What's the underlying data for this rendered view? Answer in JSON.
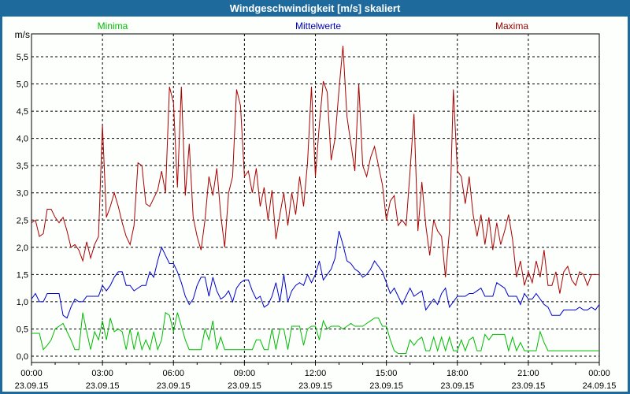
{
  "window": {
    "title": "Windgeschwindigkeit [m/s] skaliert"
  },
  "legend": [
    {
      "label": "Minima",
      "color": "#00bb00"
    },
    {
      "label": "Mittelwerte",
      "color": "#0000bb"
    },
    {
      "label": "Maxima",
      "color": "#990000"
    }
  ],
  "axis": {
    "unit_label": "m/s",
    "y_ticks": [
      "0,0",
      "0,5",
      "1,0",
      "1,5",
      "2,0",
      "2,5",
      "3,0",
      "3,5",
      "4,0",
      "4,5",
      "5,0",
      "5,5"
    ],
    "x_ticks": [
      {
        "time": "00:00",
        "date": "23.09.15"
      },
      {
        "time": "03:00",
        "date": "23.09.15"
      },
      {
        "time": "06:00",
        "date": "23.09.15"
      },
      {
        "time": "09:00",
        "date": "23.09.15"
      },
      {
        "time": "12:00",
        "date": "23.09.15"
      },
      {
        "time": "15:00",
        "date": "23.09.15"
      },
      {
        "time": "18:00",
        "date": "23.09.15"
      },
      {
        "time": "21:00",
        "date": "23.09.15"
      },
      {
        "time": "00:00",
        "date": "24.09.15"
      }
    ]
  },
  "colors": {
    "titlebar": "#1e6a9c",
    "background": "#fcfffc",
    "grid": "#000000"
  },
  "chart_data": {
    "type": "line",
    "title": "Windgeschwindigkeit [m/s] skaliert",
    "ylabel": "m/s",
    "ylim": [
      0,
      5.75
    ],
    "y_gridline_step": 0.5,
    "x_start": "23.09.15 00:00",
    "x_end": "24.09.15 00:00",
    "x_interval_minutes": 10,
    "x_major_gridlines_hours": [
      3,
      6,
      9,
      12,
      15,
      18,
      21
    ],
    "grid": "dashed",
    "legend_position": "top",
    "series": [
      {
        "name": "Maxima",
        "color": "#aa0000",
        "values": [
          2.45,
          2.5,
          2.2,
          2.25,
          2.7,
          2.7,
          2.55,
          2.45,
          2.55,
          2.3,
          2.0,
          2.05,
          1.95,
          1.75,
          2.1,
          1.8,
          2.05,
          2.2,
          4.25,
          2.55,
          2.75,
          3.0,
          2.75,
          2.45,
          2.2,
          2.05,
          2.4,
          3.55,
          3.5,
          2.8,
          2.75,
          2.9,
          3.05,
          3.4,
          3.0,
          4.95,
          4.65,
          3.1,
          4.95,
          2.95,
          3.9,
          2.55,
          2.2,
          1.95,
          2.5,
          3.3,
          2.95,
          3.45,
          2.6,
          2.0,
          3.0,
          3.3,
          4.9,
          4.6,
          3.3,
          3.4,
          3.0,
          3.45,
          2.75,
          3.1,
          2.5,
          3.05,
          2.15,
          2.6,
          3.0,
          2.4,
          3.0,
          2.6,
          3.3,
          2.75,
          3.55,
          4.95,
          3.3,
          4.25,
          5.05,
          4.85,
          3.6,
          4.0,
          4.9,
          5.7,
          4.4,
          3.9,
          3.4,
          5.0,
          3.5,
          3.3,
          3.65,
          3.85,
          3.5,
          3.15,
          2.5,
          2.85,
          2.95,
          2.4,
          2.5,
          2.4,
          3.4,
          4.45,
          2.3,
          3.2,
          2.4,
          1.85,
          2.5,
          2.3,
          2.2,
          1.45,
          2.3,
          4.9,
          3.4,
          3.3,
          2.8,
          3.3,
          2.6,
          2.2,
          2.6,
          2.05,
          2.55,
          1.95,
          2.45,
          2.05,
          2.3,
          2.6,
          2.15,
          1.45,
          1.75,
          1.3,
          1.55,
          1.35,
          1.75,
          1.45,
          1.95,
          1.3,
          1.3,
          1.55,
          1.15,
          1.55,
          1.65,
          1.4,
          1.3,
          1.55,
          1.5,
          1.3,
          1.5,
          1.5,
          1.5
        ]
      },
      {
        "name": "Mittelwerte",
        "color": "#0000cc",
        "values": [
          1.05,
          1.15,
          1.0,
          1.0,
          1.15,
          1.15,
          1.15,
          1.15,
          0.75,
          0.7,
          0.9,
          1.05,
          1.0,
          1.0,
          1.1,
          1.1,
          1.1,
          1.1,
          1.3,
          1.2,
          1.3,
          1.45,
          1.55,
          1.55,
          1.3,
          1.3,
          1.2,
          1.25,
          1.3,
          1.3,
          1.55,
          1.45,
          1.75,
          2.0,
          1.85,
          1.7,
          1.7,
          1.55,
          1.35,
          1.1,
          0.95,
          1.05,
          1.3,
          1.45,
          1.45,
          1.1,
          1.45,
          1.2,
          1.05,
          1.1,
          1.2,
          1.0,
          1.25,
          1.35,
          1.4,
          1.4,
          1.2,
          1.05,
          1.1,
          0.9,
          0.95,
          1.1,
          1.35,
          1.0,
          1.5,
          1.0,
          1.2,
          1.3,
          1.35,
          1.3,
          1.5,
          1.35,
          1.5,
          1.75,
          1.4,
          1.5,
          1.6,
          1.8,
          2.3,
          2.05,
          1.75,
          1.7,
          1.6,
          1.55,
          1.45,
          1.5,
          1.6,
          1.75,
          1.65,
          1.55,
          1.35,
          1.15,
          1.25,
          1.1,
          0.95,
          1.1,
          1.25,
          1.1,
          1.15,
          1.2,
          0.85,
          0.95,
          1.05,
          0.95,
          1.15,
          1.25,
          0.9,
          1.0,
          1.1,
          1.1,
          1.1,
          1.15,
          1.15,
          1.2,
          1.25,
          1.1,
          1.1,
          1.1,
          1.35,
          1.3,
          1.25,
          1.1,
          1.1,
          1.1,
          0.95,
          1.15,
          1.05,
          1.05,
          1.15,
          1.05,
          0.95,
          0.9,
          0.75,
          0.75,
          0.75,
          0.85,
          0.85,
          0.85,
          0.85,
          0.9,
          0.85,
          0.85,
          0.9,
          0.85,
          0.95
        ]
      },
      {
        "name": "Minima",
        "color": "#00bb00",
        "values": [
          0.42,
          0.42,
          0.42,
          0.12,
          0.2,
          0.3,
          0.5,
          0.55,
          0.6,
          0.45,
          0.3,
          0.12,
          0.12,
          0.8,
          0.45,
          0.12,
          0.45,
          0.3,
          0.65,
          0.3,
          0.7,
          0.45,
          0.5,
          0.45,
          0.12,
          0.5,
          0.12,
          0.45,
          0.12,
          0.3,
          0.12,
          0.45,
          0.12,
          0.3,
          0.8,
          0.75,
          0.45,
          0.8,
          0.55,
          0.3,
          0.12,
          0.12,
          0.12,
          0.12,
          0.5,
          0.3,
          0.65,
          0.12,
          0.35,
          0.12,
          0.12,
          0.12,
          0.12,
          0.12,
          0.12,
          0.12,
          0.12,
          0.3,
          0.3,
          0.12,
          0.12,
          0.5,
          0.12,
          0.5,
          0.5,
          0.12,
          0.55,
          0.55,
          0.55,
          0.2,
          0.5,
          0.55,
          0.55,
          0.3,
          0.65,
          0.5,
          0.55,
          0.55,
          0.55,
          0.5,
          0.55,
          0.6,
          0.55,
          0.55,
          0.55,
          0.6,
          0.65,
          0.7,
          0.7,
          0.55,
          0.55,
          0.3,
          0.1,
          0.05,
          0.05,
          0.05,
          0.3,
          0.2,
          0.3,
          0.35,
          0.1,
          0.1,
          0.35,
          0.1,
          0.35,
          0.1,
          0.35,
          0.1,
          0.1,
          0.3,
          0.1,
          0.3,
          0.35,
          0.1,
          0.1,
          0.4,
          0.3,
          0.4,
          0.4,
          0.4,
          0.4,
          0.1,
          0.35,
          0.1,
          0.25,
          0.1,
          0.1,
          0.1,
          0.1,
          0.45,
          0.25,
          0.1,
          0.1,
          0.1,
          0.1,
          0.1,
          0.1,
          0.1,
          0.1,
          0.1,
          0.1,
          0.1,
          0.1,
          0.1,
          0.1
        ]
      }
    ]
  }
}
